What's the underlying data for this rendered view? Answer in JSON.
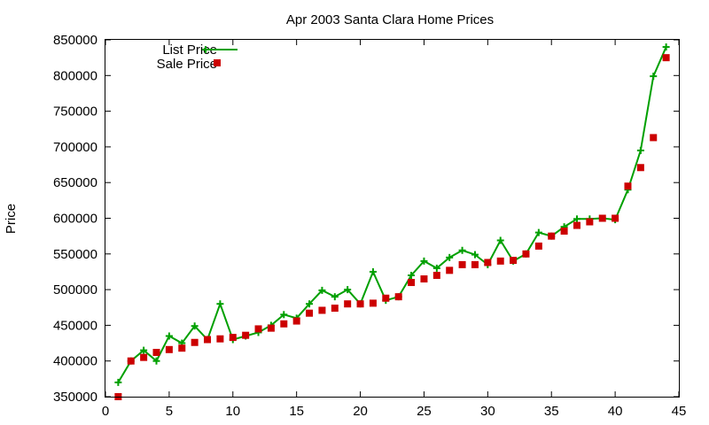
{
  "chart_data": {
    "type": "scatter",
    "title": "Apr 2003 Santa Clara Home Prices",
    "xlabel": "",
    "ylabel": "Price",
    "xlim": [
      0,
      45
    ],
    "ylim": [
      350000,
      850000
    ],
    "xticks": [
      0,
      5,
      10,
      15,
      20,
      25,
      30,
      35,
      40,
      45
    ],
    "yticks": [
      350000,
      400000,
      450000,
      500000,
      550000,
      600000,
      650000,
      700000,
      750000,
      800000,
      850000
    ],
    "grid": false,
    "legend_position": "top-left",
    "x": [
      1,
      2,
      3,
      4,
      5,
      6,
      7,
      8,
      9,
      10,
      11,
      12,
      13,
      14,
      15,
      16,
      17,
      18,
      19,
      20,
      21,
      22,
      23,
      24,
      25,
      26,
      27,
      28,
      29,
      30,
      31,
      32,
      33,
      34,
      35,
      36,
      37,
      38,
      39,
      40,
      41,
      42,
      43,
      44
    ],
    "series": [
      {
        "name": "List Price",
        "style": "linespoints",
        "color": "#00a000",
        "values": [
          370000,
          400000,
          415000,
          400000,
          435000,
          425000,
          449000,
          430000,
          480000,
          430000,
          435000,
          440000,
          450000,
          465000,
          460000,
          480000,
          499000,
          490000,
          500000,
          480000,
          525000,
          485000,
          490000,
          520000,
          540000,
          530000,
          545000,
          555000,
          549000,
          535000,
          569000,
          540000,
          550000,
          580000,
          575000,
          588000,
          599000,
          599000,
          600000,
          598000,
          640000,
          695000,
          799000,
          840000
        ]
      },
      {
        "name": "Sale Price",
        "style": "points",
        "color": "#cc0000",
        "values": [
          350000,
          400000,
          405000,
          412000,
          416000,
          418000,
          426000,
          430000,
          431000,
          433000,
          436000,
          445000,
          446000,
          452000,
          456000,
          467000,
          471000,
          474000,
          480000,
          480000,
          481000,
          488000,
          490000,
          510000,
          515000,
          520000,
          527000,
          535000,
          535000,
          538000,
          540000,
          541000,
          550000,
          561000,
          575000,
          582000,
          590000,
          595000,
          600000,
          600000,
          645000,
          671000,
          713000,
          825000
        ]
      }
    ]
  }
}
